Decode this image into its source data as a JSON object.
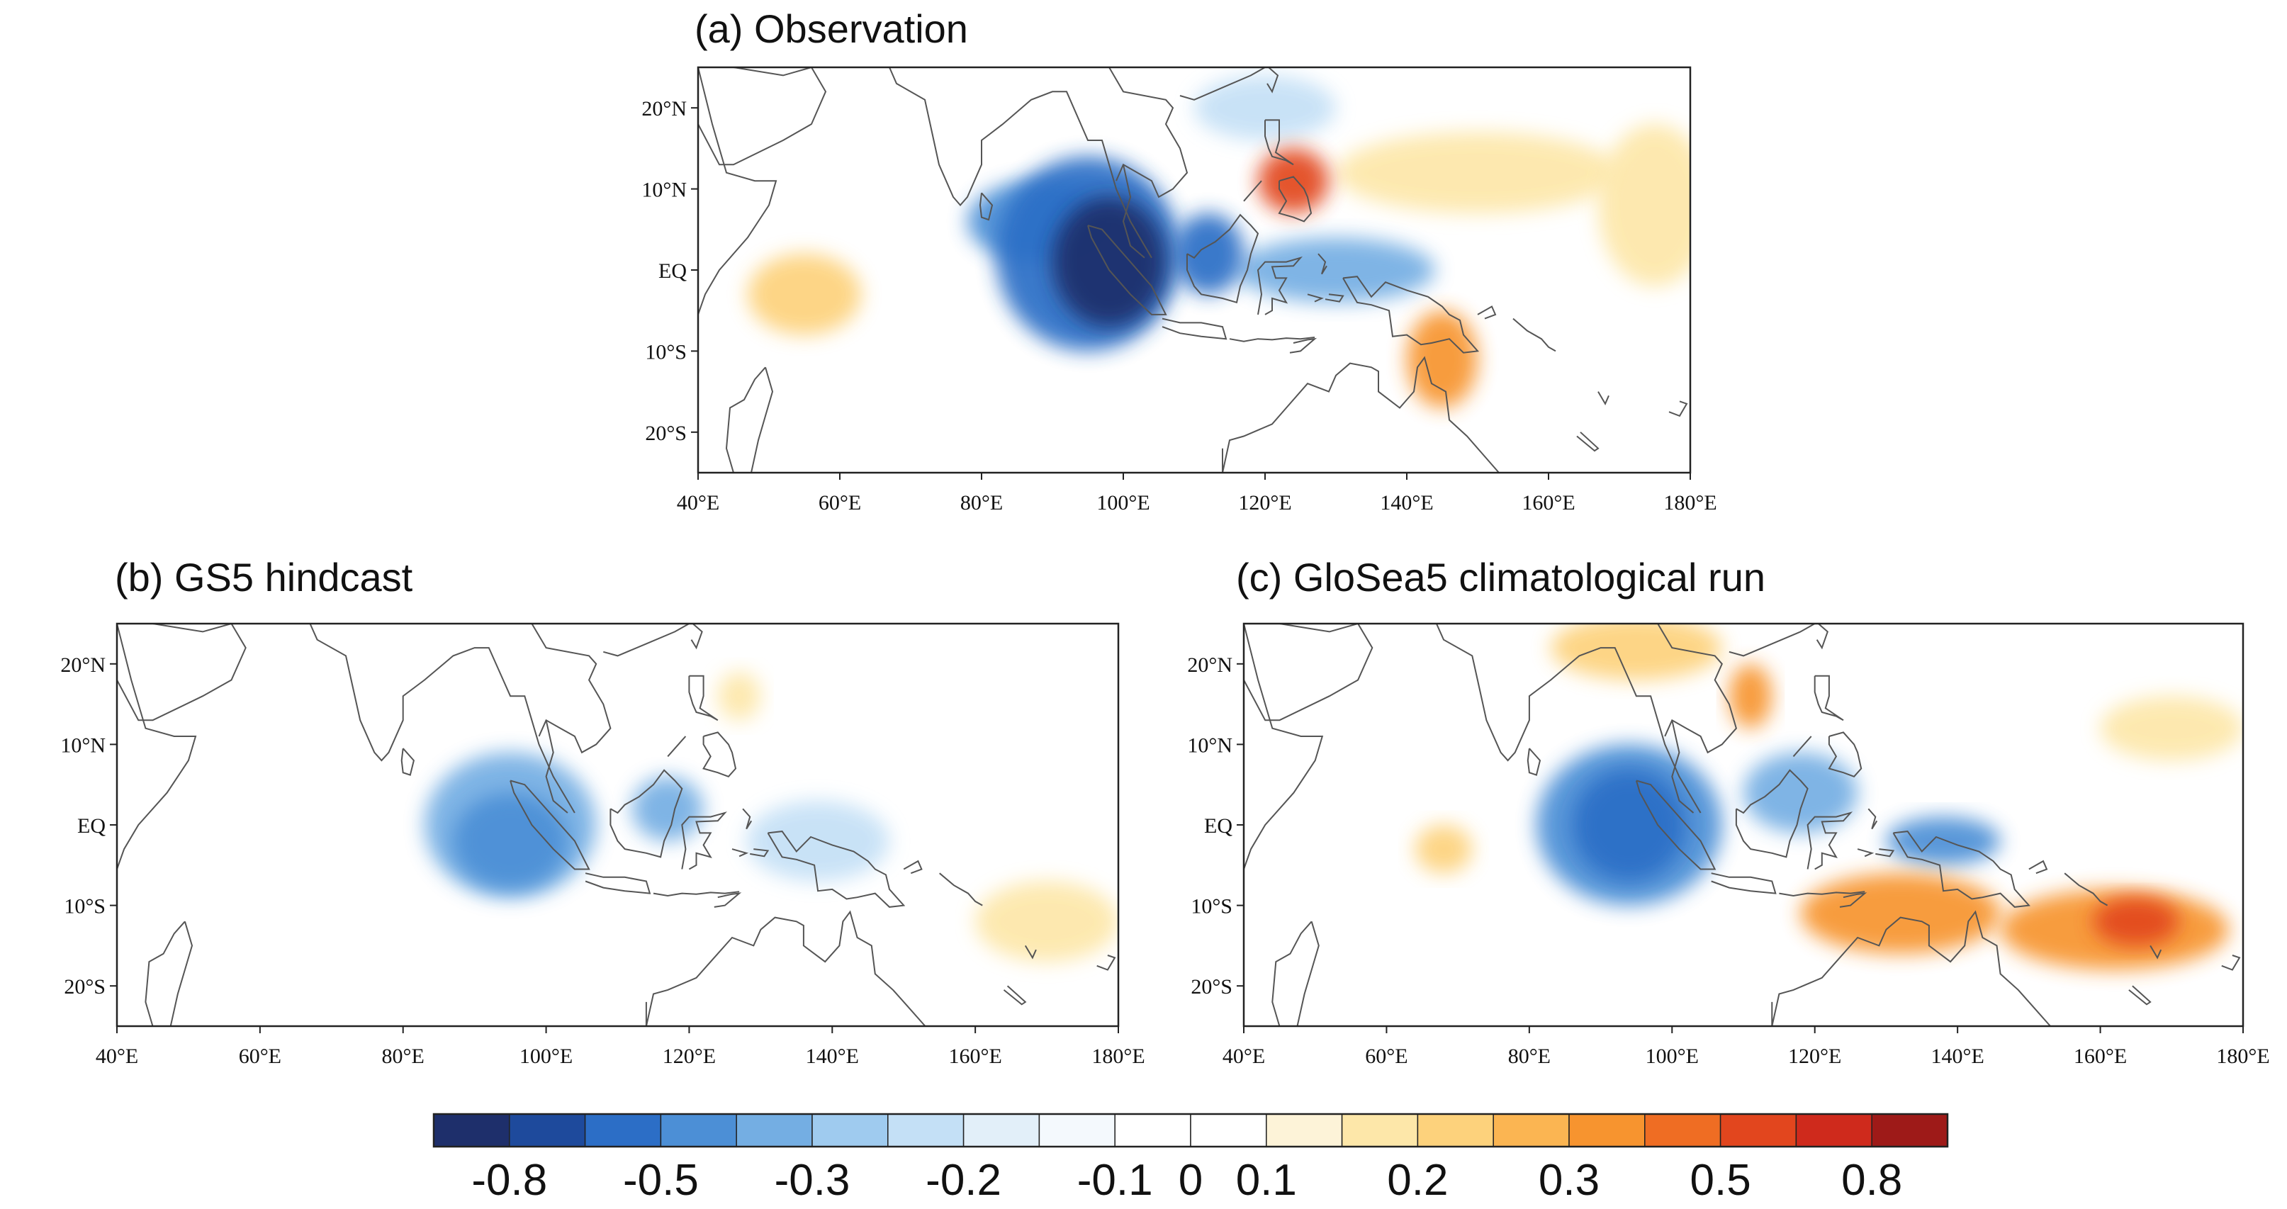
{
  "panels": {
    "a": {
      "title": "(a) Observation",
      "blobs": [
        {
          "lon": 95,
          "lat": 2,
          "rx": 13,
          "ry": 12,
          "val": -0.5
        },
        {
          "lon": 98,
          "lat": 1,
          "rx": 8,
          "ry": 8,
          "val": -0.8
        },
        {
          "lon": 88,
          "lat": 6,
          "rx": 10,
          "ry": 5,
          "val": -0.3
        },
        {
          "lon": 112,
          "lat": 2,
          "rx": 5,
          "ry": 5,
          "val": -0.5
        },
        {
          "lon": 130,
          "lat": 0,
          "rx": 14,
          "ry": 4,
          "val": -0.2
        },
        {
          "lon": 120,
          "lat": 20,
          "rx": 10,
          "ry": 4,
          "val": -0.1
        },
        {
          "lon": 124,
          "lat": 11,
          "rx": 5,
          "ry": 4,
          "val": 0.5
        },
        {
          "lon": 145,
          "lat": -11,
          "rx": 5,
          "ry": 6,
          "val": 0.3
        },
        {
          "lon": 55,
          "lat": -3,
          "rx": 8,
          "ry": 5,
          "val": 0.2
        },
        {
          "lon": 150,
          "lat": 12,
          "rx": 20,
          "ry": 5,
          "val": 0.1
        },
        {
          "lon": 175,
          "lat": 8,
          "rx": 8,
          "ry": 10,
          "val": 0.1
        }
      ]
    },
    "b": {
      "title": "(b) GS5 hindcast",
      "blobs": [
        {
          "lon": 95,
          "lat": 0,
          "rx": 12,
          "ry": 9,
          "val": -0.2
        },
        {
          "lon": 95,
          "lat": -2,
          "rx": 8,
          "ry": 6,
          "val": -0.3
        },
        {
          "lon": 117,
          "lat": 2,
          "rx": 5,
          "ry": 4,
          "val": -0.2
        },
        {
          "lon": 138,
          "lat": -2,
          "rx": 10,
          "ry": 5,
          "val": -0.1
        },
        {
          "lon": 127,
          "lat": 16,
          "rx": 3,
          "ry": 3,
          "val": 0.1
        },
        {
          "lon": 170,
          "lat": -12,
          "rx": 10,
          "ry": 5,
          "val": 0.1
        }
      ]
    },
    "c": {
      "title": "(c) GloSea5 climatological run",
      "blobs": [
        {
          "lon": 94,
          "lat": 0,
          "rx": 13,
          "ry": 10,
          "val": -0.3
        },
        {
          "lon": 94,
          "lat": 0,
          "rx": 8,
          "ry": 7,
          "val": -0.5
        },
        {
          "lon": 118,
          "lat": 4,
          "rx": 8,
          "ry": 5,
          "val": -0.2
        },
        {
          "lon": 138,
          "lat": -2,
          "rx": 8,
          "ry": 3,
          "val": -0.3
        },
        {
          "lon": 95,
          "lat": 22,
          "rx": 12,
          "ry": 4,
          "val": 0.2
        },
        {
          "lon": 111,
          "lat": 16,
          "rx": 3,
          "ry": 4,
          "val": 0.3
        },
        {
          "lon": 132,
          "lat": -11,
          "rx": 14,
          "ry": 5,
          "val": 0.3
        },
        {
          "lon": 162,
          "lat": -13,
          "rx": 16,
          "ry": 5,
          "val": 0.3
        },
        {
          "lon": 165,
          "lat": -12,
          "rx": 6,
          "ry": 3,
          "val": 0.5
        },
        {
          "lon": 170,
          "lat": 12,
          "rx": 10,
          "ry": 4,
          "val": 0.1
        },
        {
          "lon": 68,
          "lat": -3,
          "rx": 4,
          "ry": 3,
          "val": 0.2
        }
      ]
    }
  },
  "axes": {
    "lon_ticks": [
      "40°E",
      "60°E",
      "80°E",
      "100°E",
      "120°E",
      "140°E",
      "160°E",
      "180°E"
    ],
    "lon_values": [
      40,
      60,
      80,
      100,
      120,
      140,
      160,
      180
    ],
    "lat_ticks": [
      "20°N",
      "10°N",
      "EQ",
      "10°S",
      "20°S"
    ],
    "lat_values": [
      20,
      10,
      0,
      -10,
      -20
    ],
    "lon_range": [
      40,
      180
    ],
    "lat_range": [
      -25,
      25
    ]
  },
  "colorbar": {
    "labels": [
      "-0.8",
      "-0.5",
      "-0.3",
      "-0.2",
      "-0.1",
      "0",
      "0.1",
      "0.2",
      "0.3",
      "0.5",
      "0.8"
    ],
    "colors": [
      "#1e2f6b",
      "#1e4a9c",
      "#2c6ec6",
      "#4c8fd6",
      "#74aee3",
      "#9fcbef",
      "#c4e0f6",
      "#e2eff9",
      "#f4f9fd",
      "#ffffff",
      "#ffffff",
      "#fdf3d8",
      "#fde7a9",
      "#fdd27c",
      "#fbb552",
      "#f7942f",
      "#ef6d23",
      "#e2461e",
      "#cf2a1c",
      "#9e1a18"
    ]
  },
  "level_colors": {
    "-0.8": "#1e2f6b",
    "-0.5": "#2c6ec6",
    "-0.3": "#4c8fd6",
    "-0.2": "#74aee3",
    "-0.1": "#c4e0f6",
    "0.1": "#fde7a9",
    "0.2": "#fdd27c",
    "0.3": "#f7942f",
    "0.5": "#e2461e",
    "0.8": "#9e1a18"
  }
}
